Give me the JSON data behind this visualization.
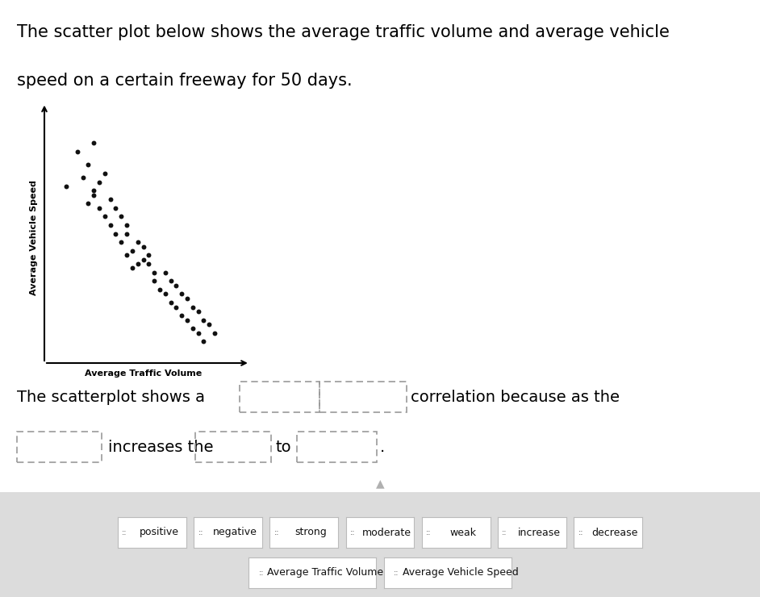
{
  "title_line1": "The scatter plot below shows the average traffic volume and average vehicle",
  "title_line2": "speed on a certain freeway for 50 days.",
  "xlabel": "Average Traffic Volume",
  "ylabel": "Average Vehicle Speed",
  "scatter_x": [
    0.3,
    0.33,
    0.32,
    0.35,
    0.28,
    0.31,
    0.33,
    0.34,
    0.32,
    0.33,
    0.34,
    0.36,
    0.35,
    0.37,
    0.36,
    0.38,
    0.37,
    0.39,
    0.38,
    0.39,
    0.4,
    0.41,
    0.39,
    0.42,
    0.41,
    0.43,
    0.4,
    0.42,
    0.44,
    0.43,
    0.44,
    0.46,
    0.45,
    0.47,
    0.46,
    0.48,
    0.47,
    0.49,
    0.48,
    0.5,
    0.49,
    0.51,
    0.5,
    0.52,
    0.51,
    0.53,
    0.52,
    0.54,
    0.53,
    0.55
  ],
  "scatter_y": [
    0.83,
    0.85,
    0.8,
    0.78,
    0.75,
    0.77,
    0.74,
    0.76,
    0.71,
    0.73,
    0.7,
    0.72,
    0.68,
    0.7,
    0.66,
    0.68,
    0.64,
    0.66,
    0.62,
    0.64,
    0.6,
    0.62,
    0.59,
    0.61,
    0.57,
    0.59,
    0.56,
    0.58,
    0.55,
    0.57,
    0.53,
    0.55,
    0.51,
    0.53,
    0.5,
    0.52,
    0.48,
    0.5,
    0.47,
    0.49,
    0.45,
    0.47,
    0.44,
    0.46,
    0.42,
    0.44,
    0.41,
    0.43,
    0.39,
    0.41
  ],
  "dot_color": "#111111",
  "dot_size": 18,
  "bg_color": "#ffffff",
  "text_color": "#000000",
  "bottom_bg": "#dcdcdc",
  "dashed_color": "#999999",
  "chip_border": "#bbbbbb",
  "arrow_color": "#b0b0b0",
  "title_fontsize": 15,
  "body_fontsize": 14,
  "chip_fontsize": 9
}
